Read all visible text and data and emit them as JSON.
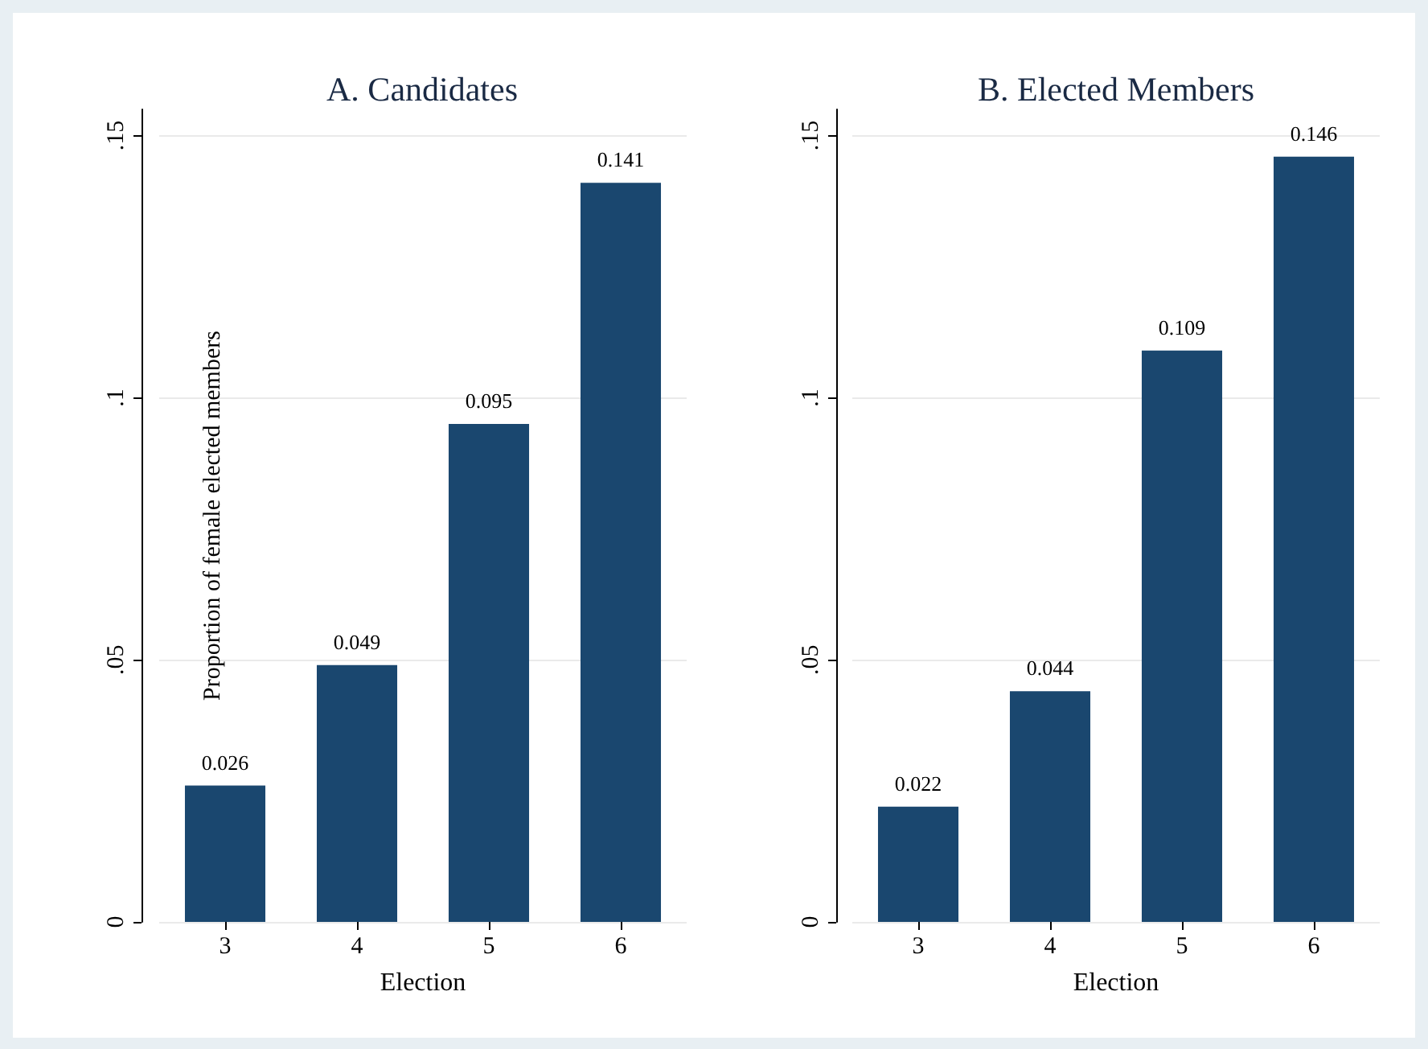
{
  "chart_data": [
    {
      "type": "bar",
      "title": "A. Candidates",
      "xlabel": "Election",
      "ylabel": "Proportion of female elected members",
      "categories": [
        "3",
        "4",
        "5",
        "6"
      ],
      "values": [
        0.026,
        0.049,
        0.095,
        0.141
      ],
      "color": "#1a476f",
      "data_labels": true,
      "ylim": [
        0,
        0.155
      ],
      "yticks": [
        {
          "value": 0,
          "label": "0"
        },
        {
          "value": 0.05,
          "label": ".05"
        },
        {
          "value": 0.1,
          "label": ".1"
        },
        {
          "value": 0.15,
          "label": ".15"
        }
      ],
      "grid": "y"
    },
    {
      "type": "bar",
      "title": "B. Elected Members",
      "xlabel": "Election",
      "categories": [
        "3",
        "4",
        "5",
        "6"
      ],
      "values": [
        0.022,
        0.044,
        0.109,
        0.146
      ],
      "color": "#1a476f",
      "data_labels": true,
      "ylim": [
        0,
        0.155
      ],
      "yticks": [
        {
          "value": 0,
          "label": "0"
        },
        {
          "value": 0.05,
          "label": ".05"
        },
        {
          "value": 0.1,
          "label": ".1"
        },
        {
          "value": 0.15,
          "label": ".15"
        }
      ],
      "grid": "y"
    }
  ]
}
